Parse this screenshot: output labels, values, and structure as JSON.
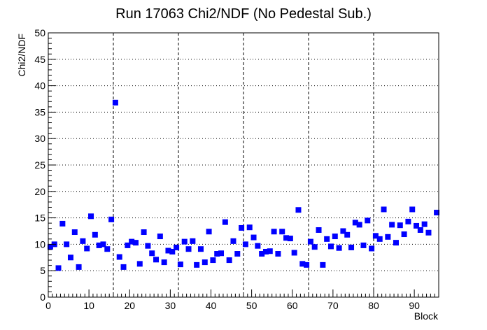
{
  "chart_data": {
    "type": "scatter",
    "title": "Run 17063 Chi2/NDF (No Pedestal Sub.)",
    "xlabel": "Block",
    "ylabel": "Chi2/NDF",
    "xlim": [
      0,
      96
    ],
    "ylim": [
      0,
      50
    ],
    "x_ticks": [
      0,
      10,
      20,
      30,
      40,
      50,
      60,
      70,
      80,
      90
    ],
    "y_ticks": [
      0,
      5,
      10,
      15,
      20,
      25,
      30,
      35,
      40,
      45,
      50
    ],
    "vertical_dashed_lines": [
      16,
      32,
      48,
      64,
      80
    ],
    "grid": "dotted",
    "marker_color": "#0000ff",
    "marker": "square",
    "x": [
      0.5,
      1.5,
      2.5,
      3.5,
      4.5,
      5.5,
      6.5,
      7.5,
      8.5,
      9.5,
      10.5,
      11.5,
      12.5,
      13.5,
      14.5,
      15.5,
      16.5,
      17.5,
      18.5,
      19.5,
      20.5,
      21.5,
      22.5,
      23.5,
      24.5,
      25.5,
      26.5,
      27.5,
      28.5,
      29.5,
      30.5,
      31.5,
      32.5,
      33.5,
      34.5,
      35.5,
      36.5,
      37.5,
      38.5,
      39.5,
      40.5,
      41.5,
      42.5,
      43.5,
      44.5,
      45.5,
      46.5,
      47.5,
      48.5,
      49.5,
      50.5,
      51.5,
      52.5,
      53.5,
      54.5,
      55.5,
      56.5,
      57.5,
      58.5,
      59.5,
      60.5,
      61.5,
      62.5,
      63.5,
      64.5,
      65.5,
      66.5,
      67.5,
      68.5,
      69.5,
      70.5,
      71.5,
      72.5,
      73.5,
      74.5,
      75.5,
      76.5,
      77.5,
      78.5,
      79.5,
      80.5,
      81.5,
      82.5,
      83.5,
      84.5,
      85.5,
      86.5,
      87.5,
      88.5,
      89.5,
      90.5,
      91.5,
      92.5,
      93.5,
      94.5,
      95.5
    ],
    "y": [
      9.5,
      10.0,
      5.5,
      13.9,
      10.0,
      7.5,
      12.3,
      5.7,
      10.6,
      9.2,
      15.3,
      11.8,
      9.8,
      10.0,
      9.1,
      14.7,
      36.8,
      7.6,
      5.7,
      9.8,
      10.5,
      10.3,
      6.3,
      12.3,
      9.7,
      8.3,
      7.1,
      11.5,
      6.6,
      8.8,
      8.6,
      9.4,
      6.2,
      10.5,
      9.1,
      10.6,
      6.1,
      9.1,
      6.6,
      12.4,
      7.0,
      8.2,
      8.3,
      14.2,
      7.0,
      10.6,
      8.2,
      13.1,
      10.0,
      13.2,
      11.3,
      9.7,
      8.2,
      8.6,
      8.7,
      12.4,
      8.2,
      12.4,
      11.2,
      11.1,
      8.4,
      16.5,
      6.3,
      6.1,
      10.5,
      9.5,
      12.7,
      6.1,
      11.0,
      9.6,
      11.5,
      9.3,
      12.5,
      11.8,
      9.4,
      14.1,
      13.7,
      9.8,
      14.5,
      9.2,
      11.6,
      11.0,
      16.6,
      11.4,
      13.7,
      10.3,
      13.6,
      11.9,
      14.3,
      16.6,
      13.5,
      12.7,
      13.8,
      12.2,
      null,
      16.0
    ]
  }
}
